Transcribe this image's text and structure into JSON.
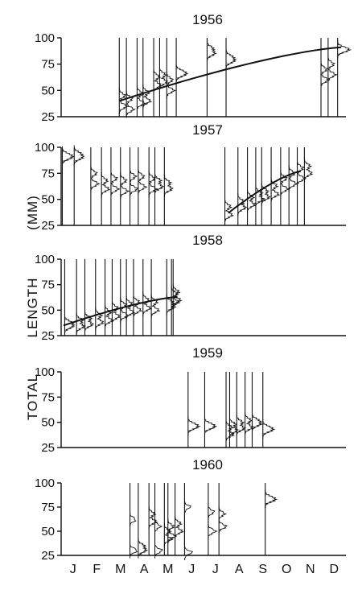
{
  "chart_data": {
    "type": "line",
    "ylabel_words": [
      "LENGTH",
      "(MM)",
      "TOTAL"
    ],
    "months": [
      "J",
      "F",
      "M",
      "A",
      "M",
      "J",
      "J",
      "A",
      "S",
      "O",
      "N",
      "D"
    ],
    "yticks": [
      25,
      50,
      75,
      100
    ],
    "ylim": [
      25,
      100
    ],
    "xlim": [
      0,
      12
    ],
    "panels": [
      {
        "year": "1956",
        "samples": [
          {
            "t": 2.45,
            "modes": [
              35,
              45
            ]
          },
          {
            "t": 2.75,
            "modes": [
              32,
              42
            ]
          },
          {
            "t": 3.2,
            "modes": [
              38,
              47
            ]
          },
          {
            "t": 3.45,
            "modes": [
              40,
              48
            ]
          },
          {
            "t": 3.9,
            "modes": [
              55,
              63
            ]
          },
          {
            "t": 4.15,
            "modes": [
              58,
              65
            ]
          },
          {
            "t": 4.45,
            "modes": [
              50,
              60
            ]
          },
          {
            "t": 4.85,
            "modes": [
              65,
              68
            ]
          },
          {
            "t": 6.15,
            "modes": [
              85,
              90
            ]
          },
          {
            "t": 6.95,
            "modes": [
              78,
              82
            ]
          },
          {
            "t": 10.95,
            "modes": [
              60,
              70
            ]
          },
          {
            "t": 11.25,
            "modes": [
              65,
              75
            ]
          },
          {
            "t": 11.65,
            "modes": [
              88,
              90
            ]
          }
        ],
        "trend": {
          "x": [
            2.45,
            11.8
          ],
          "y": [
            40,
            91
          ]
        }
      },
      {
        "year": "1957",
        "samples": [
          {
            "t": 0.05,
            "modes": [
              90,
              93
            ]
          },
          {
            "t": 0.55,
            "modes": [
              90,
              94
            ]
          },
          {
            "t": 1.25,
            "modes": [
              65,
              75
            ]
          },
          {
            "t": 1.7,
            "modes": [
              60,
              68
            ]
          },
          {
            "t": 2.1,
            "modes": [
              60,
              70
            ]
          },
          {
            "t": 2.5,
            "modes": [
              58,
              68
            ]
          },
          {
            "t": 2.9,
            "modes": [
              60,
              72
            ]
          },
          {
            "t": 3.25,
            "modes": [
              62,
              72
            ]
          },
          {
            "t": 3.7,
            "modes": [
              60,
              70
            ]
          },
          {
            "t": 3.95,
            "modes": [
              62,
              68
            ]
          },
          {
            "t": 4.35,
            "modes": [
              60,
              66
            ]
          },
          {
            "t": 6.9,
            "modes": [
              35,
              43
            ]
          },
          {
            "t": 7.45,
            "modes": [
              42,
              48
            ]
          },
          {
            "t": 7.85,
            "modes": [
              45,
              52
            ]
          },
          {
            "t": 8.2,
            "modes": [
              50,
              56
            ]
          },
          {
            "t": 8.45,
            "modes": [
              52,
              58
            ]
          },
          {
            "t": 8.85,
            "modes": [
              55,
              63
            ]
          },
          {
            "t": 9.25,
            "modes": [
              60,
              70
            ]
          },
          {
            "t": 9.6,
            "modes": [
              65,
              75
            ]
          },
          {
            "t": 9.95,
            "modes": [
              70,
              80
            ]
          },
          {
            "t": 10.25,
            "modes": [
              75,
              82
            ]
          }
        ],
        "trend": {
          "x": [
            7.05,
            10.1
          ],
          "y": [
            37,
            77
          ]
        }
      },
      {
        "year": "1958",
        "samples": [
          {
            "t": 0.15,
            "modes": [
              34,
              38
            ]
          },
          {
            "t": 0.65,
            "modes": [
              34,
              40
            ]
          },
          {
            "t": 1.0,
            "modes": [
              36,
              42
            ]
          },
          {
            "t": 1.45,
            "modes": [
              38,
              45
            ]
          },
          {
            "t": 1.85,
            "modes": [
              40,
              48
            ]
          },
          {
            "t": 2.15,
            "modes": [
              44,
              52
            ]
          },
          {
            "t": 2.5,
            "modes": [
              45,
              55
            ]
          },
          {
            "t": 2.75,
            "modes": [
              48,
              56
            ]
          },
          {
            "t": 3.05,
            "modes": [
              50,
              58
            ]
          },
          {
            "t": 3.45,
            "modes": [
              52,
              60
            ]
          },
          {
            "t": 3.8,
            "modes": [
              50,
              58
            ]
          },
          {
            "t": 4.45,
            "modes": [
              53,
              58
            ]
          },
          {
            "t": 4.65,
            "modes": [
              58,
              66
            ]
          },
          {
            "t": 4.72,
            "modes": [
              60,
              68
            ]
          }
        ],
        "trend": {
          "x": [
            0.1,
            4.9
          ],
          "y": [
            35,
            63
          ]
        }
      },
      {
        "year": "1959",
        "samples": [
          {
            "t": 5.35,
            "modes": [
              45,
              48
            ]
          },
          {
            "t": 6.05,
            "modes": [
              45,
              48
            ]
          },
          {
            "t": 6.95,
            "modes": [
              38,
              45
            ]
          },
          {
            "t": 7.1,
            "modes": [
              42,
              48
            ]
          },
          {
            "t": 7.4,
            "modes": [
              44,
              50
            ]
          },
          {
            "t": 7.75,
            "modes": [
              45,
              52
            ]
          },
          {
            "t": 8.05,
            "modes": [
              48,
              52
            ]
          },
          {
            "t": 8.5,
            "modes": [
              42,
              45
            ]
          }
        ],
        "trend": null
      },
      {
        "year": "1960",
        "samples": [
          {
            "t": 2.9,
            "modes": [
              30,
              62
            ]
          },
          {
            "t": 3.25,
            "modes": [
              30,
              35
            ]
          },
          {
            "t": 3.7,
            "modes": [
              60,
              68
            ]
          },
          {
            "t": 3.95,
            "modes": [
              30,
              55
            ]
          },
          {
            "t": 4.35,
            "modes": [
              42,
              50
            ]
          },
          {
            "t": 4.5,
            "modes": [
              45,
              55
            ]
          },
          {
            "t": 4.8,
            "modes": [
              50,
              58
            ]
          },
          {
            "t": 5.2,
            "modes": [
              28,
              75
            ]
          },
          {
            "t": 6.2,
            "modes": [
              50,
              70
            ]
          },
          {
            "t": 6.65,
            "modes": [
              55,
              68
            ]
          },
          {
            "t": 8.6,
            "modes": [
              82,
              85
            ]
          }
        ],
        "trend": null
      }
    ]
  }
}
